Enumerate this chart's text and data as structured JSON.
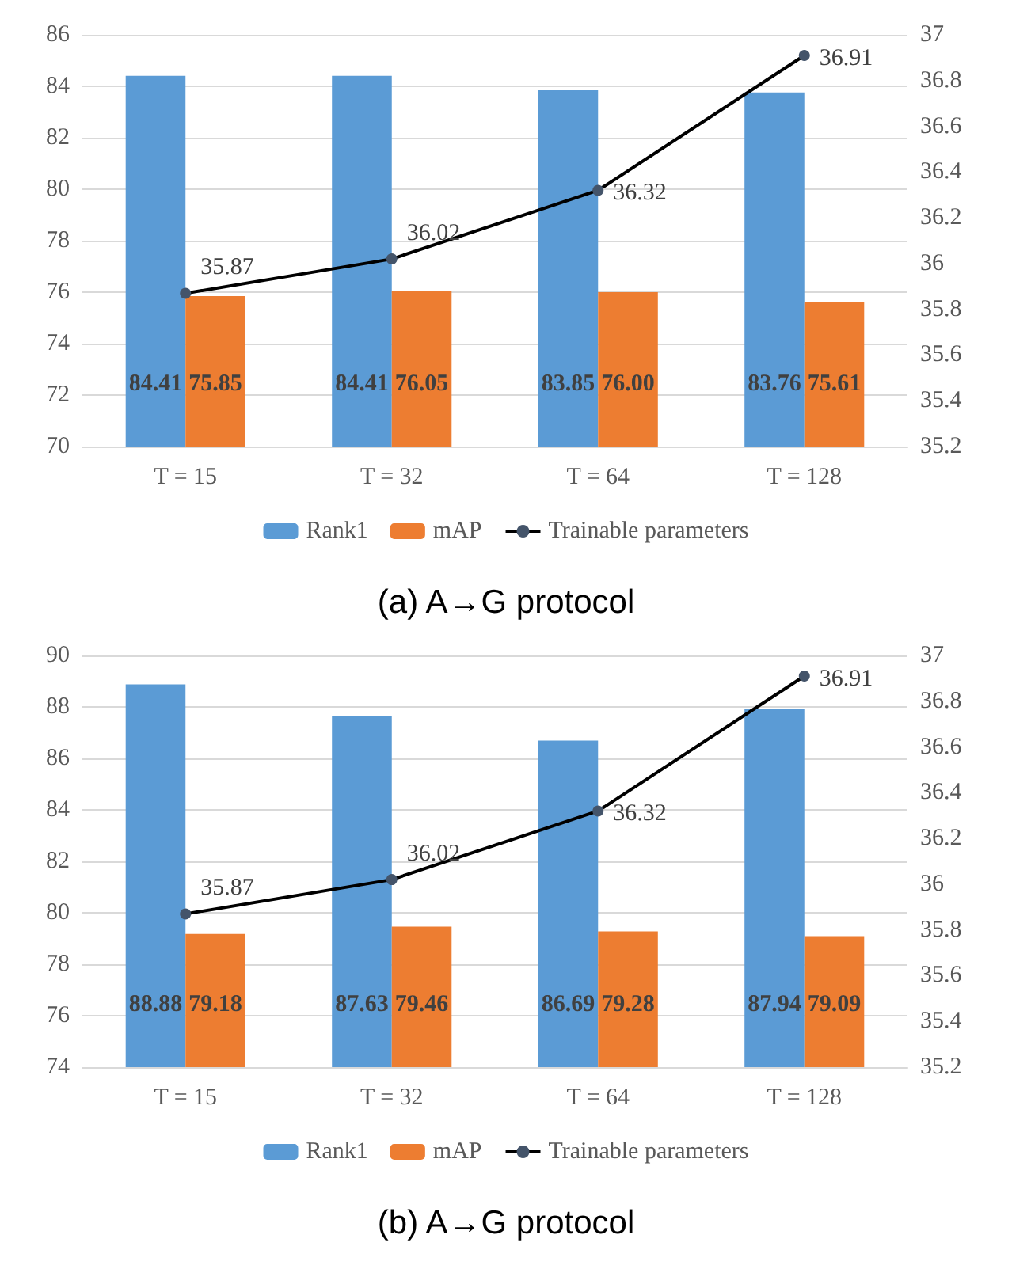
{
  "chart_data": [
    {
      "type": "bar",
      "title": "(a) A→G protocol",
      "categories": [
        "T = 15",
        "T = 32",
        "T = 64",
        "T = 128"
      ],
      "ylim": [
        70,
        86
      ],
      "yticks": [
        70,
        72,
        74,
        76,
        78,
        80,
        82,
        84,
        86
      ],
      "y2lim": [
        35.2,
        37
      ],
      "y2ticks": [
        35.2,
        35.4,
        35.6,
        35.8,
        36,
        36.2,
        36.4,
        36.6,
        36.8,
        37
      ],
      "grid": "y",
      "legend": "bottom",
      "marker": "circle",
      "series": [
        {
          "name": "Rank1",
          "color": "#5b9bd5",
          "values": [
            84.41,
            84.41,
            83.85,
            83.76
          ],
          "value_labels": [
            "84.41",
            "84.41",
            "83.85",
            "83.76"
          ]
        },
        {
          "name": "mAP",
          "color": "#ed7d31",
          "values": [
            75.85,
            76.05,
            76.0,
            75.61
          ],
          "value_labels": [
            "75.85",
            "76.05",
            "76.00",
            "75.61"
          ]
        },
        {
          "name": "Trainable parameters",
          "type": "line",
          "axis": "y2",
          "color": "#000000",
          "values": [
            35.87,
            36.02,
            36.32,
            36.91
          ],
          "value_labels": [
            "35.87",
            "36.02",
            "36.32",
            "36.91"
          ]
        }
      ]
    },
    {
      "type": "bar",
      "title": "(b) A→G protocol",
      "categories": [
        "T = 15",
        "T = 32",
        "T = 64",
        "T = 128"
      ],
      "ylim": [
        74,
        90
      ],
      "yticks": [
        74,
        76,
        78,
        80,
        82,
        84,
        86,
        88,
        90
      ],
      "y2lim": [
        35.2,
        37
      ],
      "y2ticks": [
        35.2,
        35.4,
        35.6,
        35.8,
        36,
        36.2,
        36.4,
        36.6,
        36.8,
        37
      ],
      "grid": "y",
      "legend": "bottom",
      "marker": "circle",
      "series": [
        {
          "name": "Rank1",
          "color": "#5b9bd5",
          "values": [
            88.88,
            87.63,
            86.69,
            87.94
          ],
          "value_labels": [
            "88.88",
            "87.63",
            "86.69",
            "87.94"
          ]
        },
        {
          "name": "mAP",
          "color": "#ed7d31",
          "values": [
            79.18,
            79.46,
            79.28,
            79.09
          ],
          "value_labels": [
            "79.18",
            "79.46",
            "79.28",
            "79.09"
          ]
        },
        {
          "name": "Trainable parameters",
          "type": "line",
          "axis": "y2",
          "color": "#000000",
          "values": [
            35.87,
            36.02,
            36.32,
            36.91
          ],
          "value_labels": [
            "35.87",
            "36.02",
            "36.32",
            "36.91"
          ]
        }
      ]
    }
  ]
}
